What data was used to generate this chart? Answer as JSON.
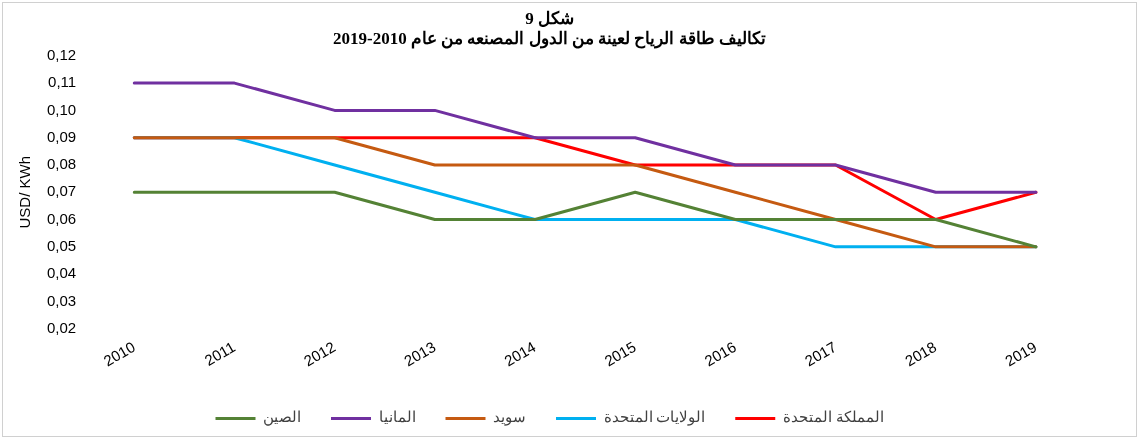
{
  "chart_data": {
    "type": "line",
    "title": "شكل 9",
    "subtitle": "تكاليف طاقة الرياح لعينة من الدول المصنعه من عام 2010-2019",
    "ylabel": "USD/ KWh",
    "categories": [
      "2010",
      "2011",
      "2012",
      "2013",
      "2014",
      "2015",
      "2016",
      "2017",
      "2018",
      "2019"
    ],
    "series": [
      {
        "name": "الصين",
        "color": "#548235",
        "values": [
          0.07,
          0.07,
          0.07,
          0.06,
          0.06,
          0.07,
          0.06,
          0.06,
          0.06,
          0.05
        ]
      },
      {
        "name": "المانيا",
        "color": "#7030a0",
        "values": [
          0.11,
          0.11,
          0.1,
          0.1,
          0.09,
          0.09,
          0.08,
          0.08,
          0.07,
          0.07
        ]
      },
      {
        "name": "سويد",
        "color": "#c55a11",
        "values": [
          0.09,
          0.09,
          0.09,
          0.08,
          0.08,
          0.08,
          0.07,
          0.06,
          0.05,
          0.05
        ]
      },
      {
        "name": "الولايات المتحدة",
        "color": "#00b0f0",
        "values": [
          0.09,
          0.09,
          0.08,
          0.07,
          0.06,
          0.06,
          0.06,
          0.05,
          0.05,
          0.05
        ]
      },
      {
        "name": "المملكة المتحدة",
        "color": "#ff0000",
        "values": [
          0.09,
          0.09,
          0.09,
          0.09,
          0.09,
          0.08,
          0.08,
          0.08,
          0.06,
          0.07
        ]
      }
    ],
    "ylim": [
      0.02,
      0.12
    ],
    "yticks": [
      {
        "value": 0.02,
        "label": "0,02"
      },
      {
        "value": 0.03,
        "label": "0,03"
      },
      {
        "value": 0.04,
        "label": "0,04"
      },
      {
        "value": 0.05,
        "label": "0,05"
      },
      {
        "value": 0.06,
        "label": "0,06"
      },
      {
        "value": 0.07,
        "label": "0,07"
      },
      {
        "value": 0.08,
        "label": "0,08"
      },
      {
        "value": 0.09,
        "label": "0,09"
      },
      {
        "value": 0.1,
        "label": "0,10"
      },
      {
        "value": 0.11,
        "label": "0,11"
      },
      {
        "value": 0.12,
        "label": "0,12"
      }
    ],
    "grid": false,
    "legend": "bottom",
    "marker": "none",
    "line_style": "solid"
  }
}
